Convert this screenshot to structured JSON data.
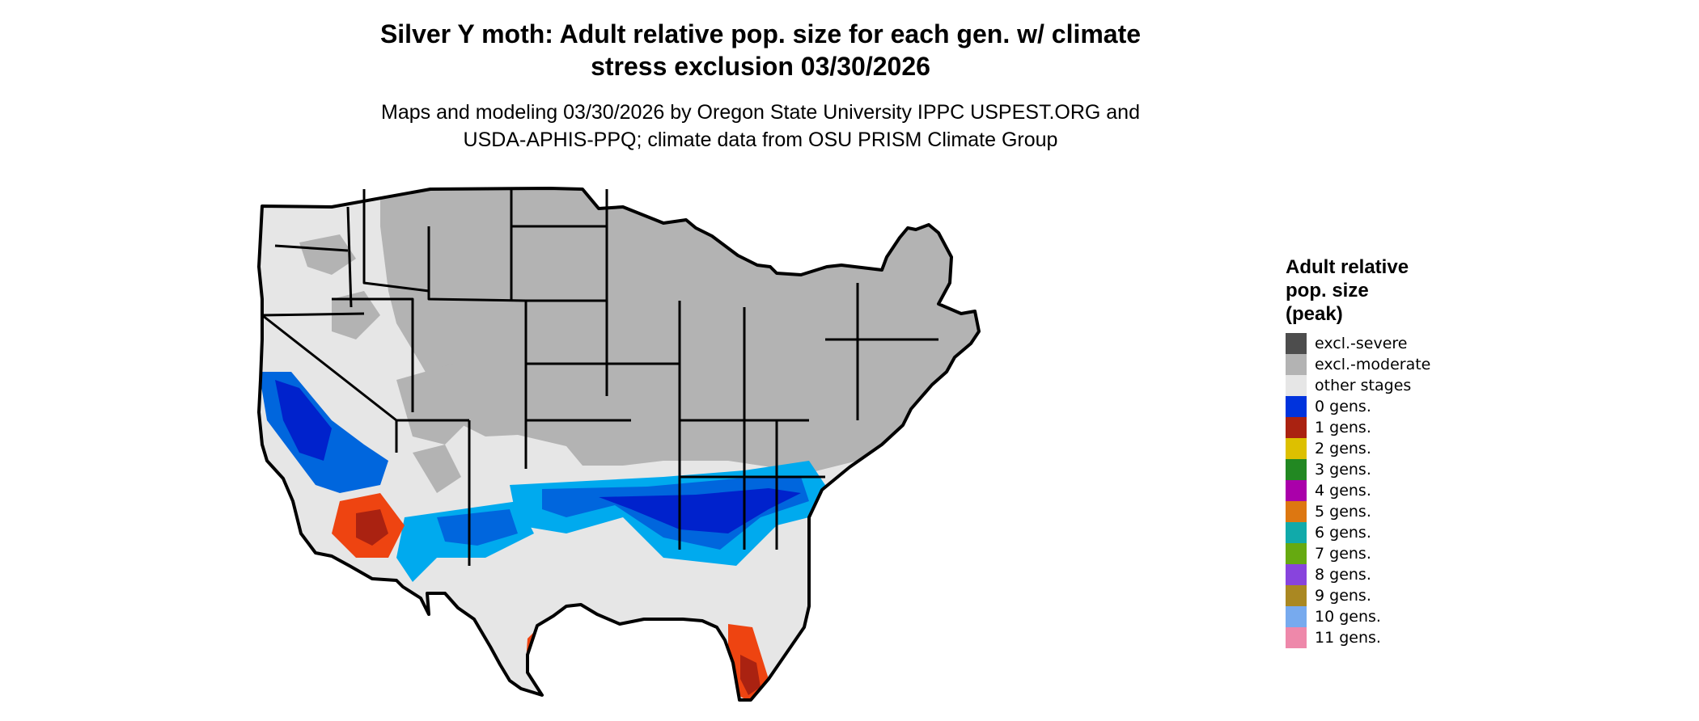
{
  "title": "Silver Y moth: Adult relative pop. size for each gen. w/ climate\nstress exclusion 03/30/2026",
  "subtitle": "Maps and modeling 03/30/2026 by Oregon State University IPPC USPEST.ORG and\nUSDA-APHIS-PPQ; climate data from OSU PRISM Climate Group",
  "legend": {
    "title": "Adult relative\npop. size\n(peak)",
    "items": [
      {
        "label": "excl.-severe",
        "color": "#4d4d4d"
      },
      {
        "label": "excl.-moderate",
        "color": "#b3b3b3"
      },
      {
        "label": "other stages",
        "color": "#e6e6e6"
      },
      {
        "label": "0 gens.",
        "color": "#0033dd"
      },
      {
        "label": "1 gens.",
        "color": "#aa2211"
      },
      {
        "label": "2 gens.",
        "color": "#ddc000"
      },
      {
        "label": "3 gens.",
        "color": "#228822"
      },
      {
        "label": "4 gens.",
        "color": "#aa00aa"
      },
      {
        "label": "5 gens.",
        "color": "#dd7711"
      },
      {
        "label": "6 gens.",
        "color": "#11aaaa"
      },
      {
        "label": "7 gens.",
        "color": "#66aa11"
      },
      {
        "label": "8 gens.",
        "color": "#8844dd"
      },
      {
        "label": "9 gens.",
        "color": "#aa8822"
      },
      {
        "label": "10 gens.",
        "color": "#77aaee"
      },
      {
        "label": "11 gens.",
        "color": "#ee88aa"
      }
    ]
  },
  "map": {
    "region": "conterminous-united-states",
    "zone_colors": {
      "deep_blue": "#0022cc",
      "mid_blue": "#0066dd",
      "light_blue": "#00aaee",
      "red_core": "#aa2211",
      "red_orange": "#ee4411"
    }
  }
}
